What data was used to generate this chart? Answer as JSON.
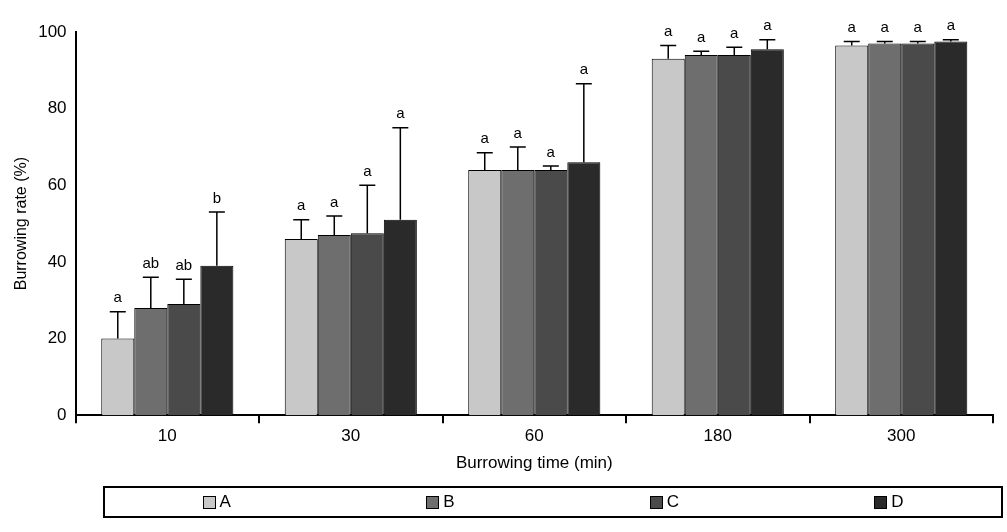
{
  "chart_data": {
    "type": "bar",
    "xlabel": "Burrowing time (min)",
    "ylabel": "Burrowing rate (%)",
    "categories": [
      "10",
      "30",
      "60",
      "180",
      "300"
    ],
    "series": [
      {
        "name": "A",
        "color": "#c8c8c8",
        "values": [
          20,
          46,
          64,
          93,
          96.5
        ],
        "errors": [
          [
            20,
            27
          ],
          [
            46,
            51
          ],
          [
            64,
            68.5
          ],
          [
            93,
            96.5
          ],
          [
            96.5,
            97.5
          ]
        ]
      },
      {
        "name": "B",
        "color": "#6e6e6e",
        "values": [
          28,
          47,
          64,
          94,
          97
        ],
        "errors": [
          [
            28,
            36
          ],
          [
            47,
            52
          ],
          [
            64,
            70
          ],
          [
            94,
            95
          ],
          [
            97,
            97.5
          ]
        ]
      },
      {
        "name": "C",
        "color": "#4a4a4a",
        "values": [
          29,
          47.5,
          64,
          94,
          97
        ],
        "errors": [
          [
            29,
            35.5
          ],
          [
            47.5,
            60
          ],
          [
            64,
            65
          ],
          [
            94,
            96
          ],
          [
            97,
            97.5
          ]
        ]
      },
      {
        "name": "D",
        "color": "#2a2a2a",
        "values": [
          39,
          51,
          66,
          95.5,
          97.5
        ],
        "errors": [
          [
            39,
            53
          ],
          [
            51,
            75
          ],
          [
            66,
            86.5
          ],
          [
            95.5,
            98
          ],
          [
            97.5,
            98
          ]
        ]
      }
    ],
    "ylim": [
      0,
      100
    ],
    "yticks": [
      0,
      20,
      40,
      60,
      80,
      100
    ],
    "grid": false,
    "legend": "bottom",
    "annotations": [
      "a",
      "ab",
      "ab",
      "b",
      "a",
      "a",
      "a",
      "a",
      "a",
      "a",
      "a",
      "a",
      "a",
      "a",
      "a",
      "a",
      "a",
      "a",
      "a",
      "a"
    ]
  }
}
